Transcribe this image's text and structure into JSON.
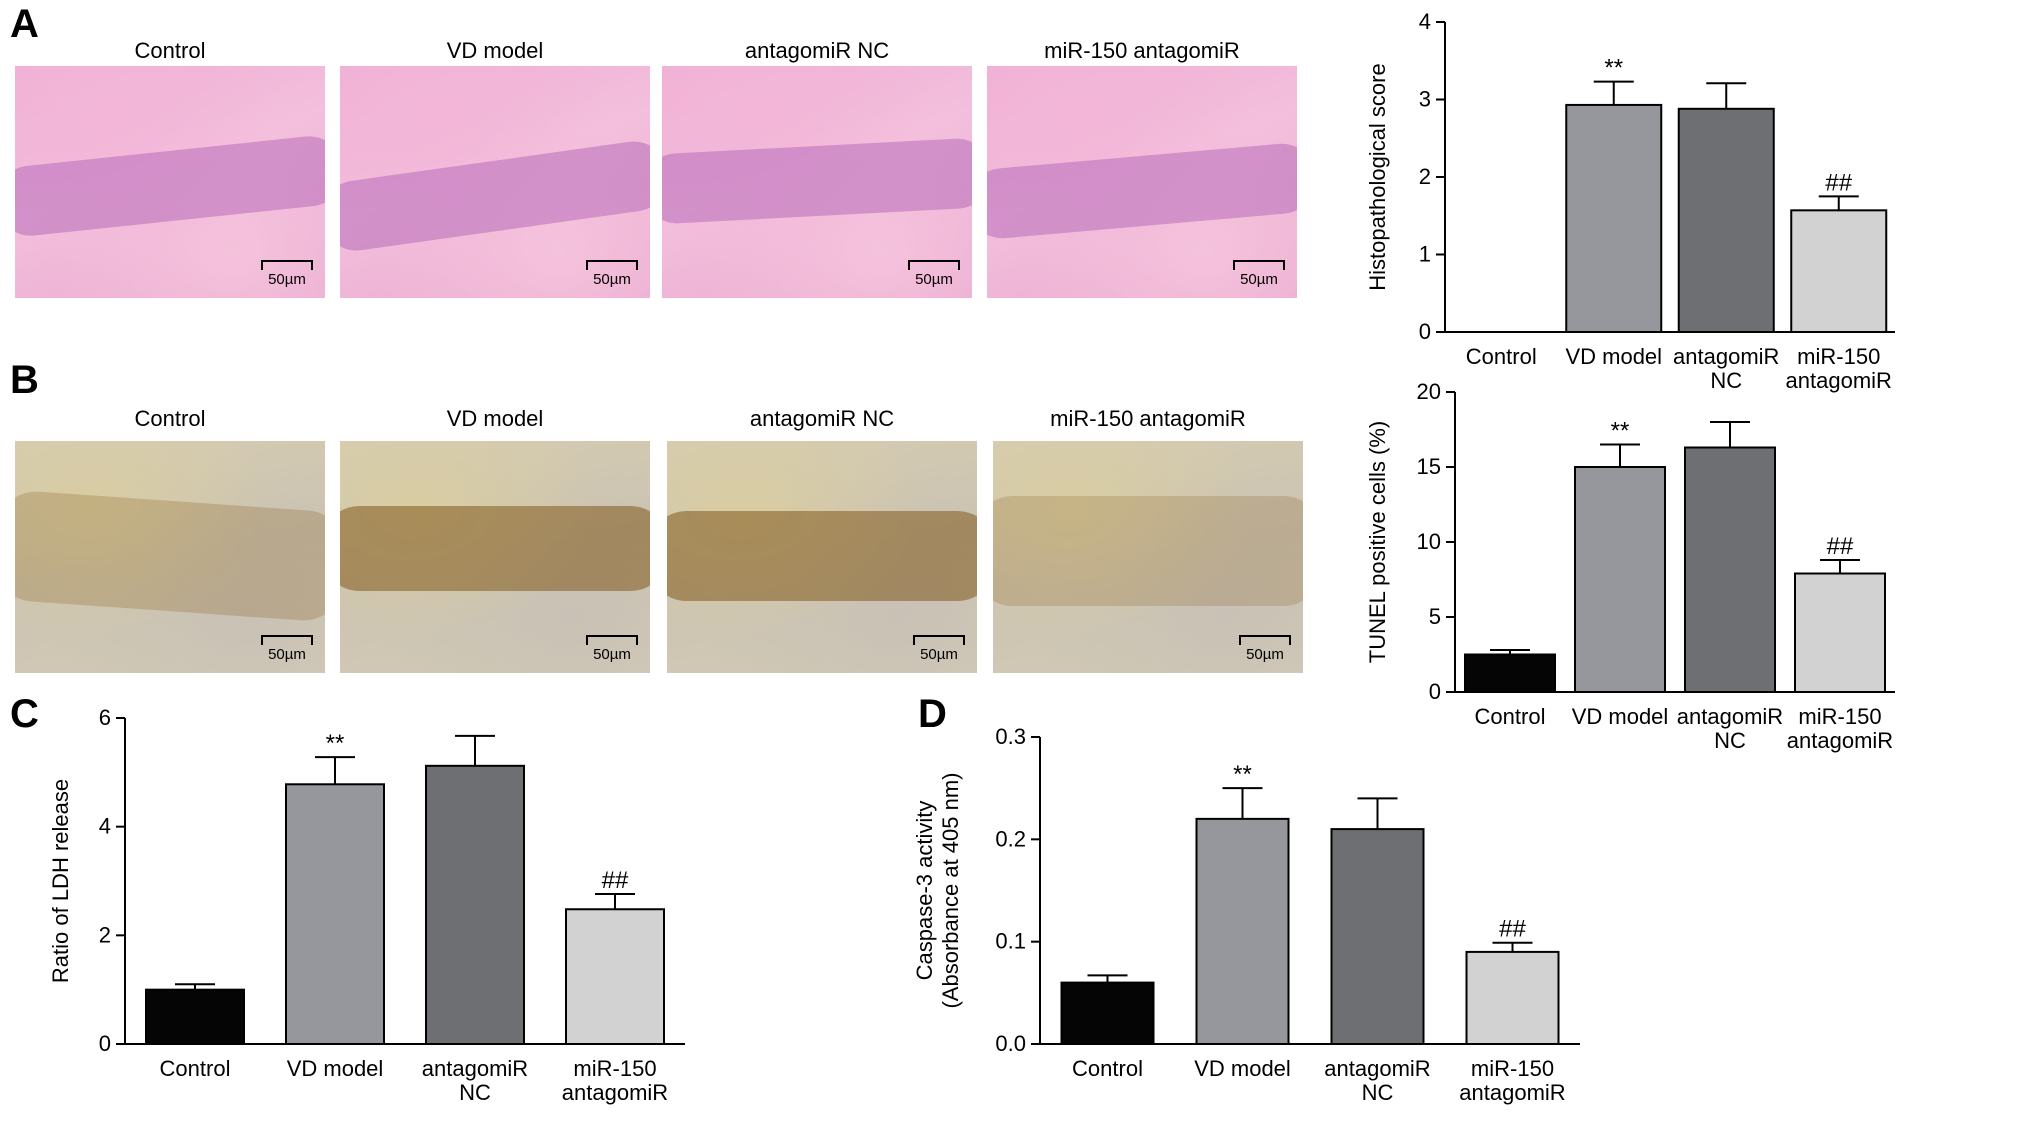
{
  "panels": {
    "a": "A",
    "b": "B",
    "c": "C",
    "d": "D"
  },
  "micrographs": {
    "a_titles": [
      "Control",
      "VD model",
      "antagomiR NC",
      "miR-150 antagomiR"
    ],
    "b_titles": [
      "Control",
      "VD model",
      "antagomiR NC",
      "miR-150 antagomiR"
    ],
    "scale_label": "50µm"
  },
  "colors": {
    "control": "#050505",
    "vd_model": "#96979c",
    "antagomir_nc": "#6e6f72",
    "mir150": "#d2d2d3"
  },
  "chart_data": [
    {
      "id": "histo",
      "type": "bar",
      "categories": [
        [
          "Control"
        ],
        [
          "VD model"
        ],
        [
          "antagomiR",
          "NC"
        ],
        [
          "miR-150",
          "antagomiR"
        ]
      ],
      "values": [
        0,
        2.93,
        2.88,
        1.57
      ],
      "errors": [
        0,
        0.3,
        0.33,
        0.18
      ],
      "annotations": [
        "",
        "**",
        "",
        "##"
      ],
      "ylabel": "Histopathological score",
      "ylim": [
        0,
        4
      ],
      "yticks": [
        0,
        1,
        2,
        3,
        4
      ],
      "xlabel": "",
      "title": ""
    },
    {
      "id": "tunel",
      "type": "bar",
      "categories": [
        [
          "Control"
        ],
        [
          "VD model"
        ],
        [
          "antagomiR",
          "NC"
        ],
        [
          "miR-150",
          "antagomiR"
        ]
      ],
      "values": [
        2.5,
        15.0,
        16.3,
        7.9
      ],
      "errors": [
        0.3,
        1.5,
        1.7,
        0.9
      ],
      "annotations": [
        "",
        "**",
        "",
        "##"
      ],
      "ylabel": "TUNEL positive cells  (%)",
      "ylim": [
        0,
        20
      ],
      "yticks": [
        0,
        5,
        10,
        15,
        20
      ],
      "xlabel": "",
      "title": ""
    },
    {
      "id": "ldh",
      "type": "bar",
      "categories": [
        [
          "Control"
        ],
        [
          "VD model"
        ],
        [
          "antagomiR",
          "NC"
        ],
        [
          "miR-150",
          "antagomiR"
        ]
      ],
      "values": [
        1.0,
        4.78,
        5.12,
        2.48
      ],
      "errors": [
        0.1,
        0.5,
        0.55,
        0.28
      ],
      "annotations": [
        "",
        "**",
        "",
        "##"
      ],
      "ylabel": "Ratio of LDH release",
      "ylim": [
        0,
        6
      ],
      "yticks": [
        0,
        2,
        4,
        6
      ],
      "xlabel": "",
      "title": ""
    },
    {
      "id": "casp",
      "type": "bar",
      "categories": [
        [
          "Control"
        ],
        [
          "VD model"
        ],
        [
          "antagomiR",
          "NC"
        ],
        [
          "miR-150",
          "antagomiR"
        ]
      ],
      "values": [
        0.06,
        0.22,
        0.21,
        0.09
      ],
      "errors": [
        0.007,
        0.03,
        0.03,
        0.009
      ],
      "annotations": [
        "",
        "**",
        "",
        "##"
      ],
      "ylabel": [
        "Caspase-3 activity",
        "(Absorbance at 405 nm)"
      ],
      "ylim": [
        0,
        0.3
      ],
      "yticks": [
        "0.0",
        "0.1",
        "0.2",
        "0.3"
      ],
      "xlabel": "",
      "title": ""
    }
  ]
}
